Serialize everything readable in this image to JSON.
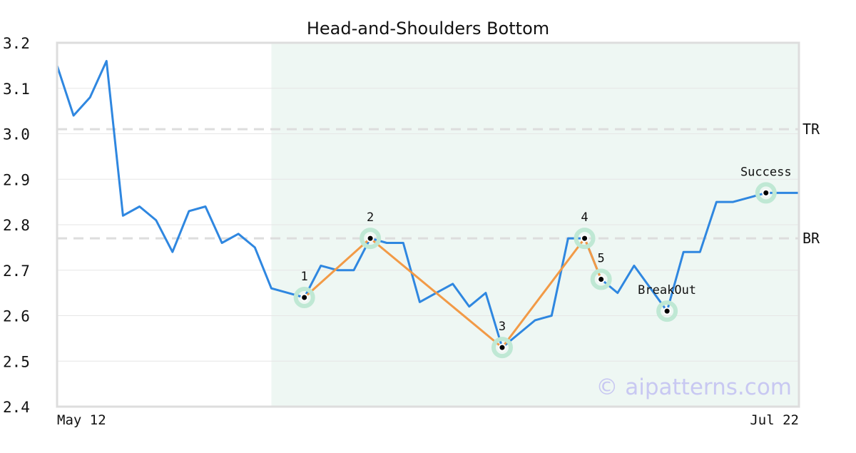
{
  "chart_data": {
    "type": "line",
    "title": "Head-and-Shoulders Bottom",
    "xlabel": "",
    "ylabel": "",
    "ylim": [
      2.4,
      3.2
    ],
    "yticks": [
      "2.4",
      "2.5",
      "2.6",
      "2.7",
      "2.8",
      "2.9",
      "3.0",
      "3.1",
      "3.2"
    ],
    "xtick_labels": [
      "May 12",
      "Jul 22"
    ],
    "grid": true,
    "colors": {
      "price": "#2f87e0",
      "pattern": "#f29a46",
      "highlight": "#bfe8d4",
      "shade": "#eef7f3",
      "refline": "#dddddd",
      "watermark": "#c8c8f2"
    },
    "series": [
      {
        "values": [
          3.15,
          3.04,
          3.08,
          3.16,
          2.82,
          2.84,
          2.81,
          2.74,
          2.83,
          2.84,
          2.76,
          2.78,
          2.75,
          2.66,
          2.65,
          2.64,
          2.71,
          2.7,
          2.7,
          2.77,
          2.76,
          2.76,
          2.63,
          2.65,
          2.67,
          2.62,
          2.65,
          2.53,
          2.56,
          2.59,
          2.6,
          2.77,
          2.77,
          2.68,
          2.65,
          2.71,
          2.66,
          2.61,
          2.74,
          2.74,
          2.85,
          2.85,
          2.86,
          2.87,
          2.87,
          2.87
        ]
      }
    ],
    "shaded_range": {
      "start_index": 13,
      "end_index": 45
    },
    "reference_lines": [
      {
        "label": "TR",
        "value": 3.01
      },
      {
        "label": "BR",
        "value": 2.77
      }
    ],
    "pattern_points": [
      {
        "label": "1",
        "index": 15,
        "value": 2.64
      },
      {
        "label": "2",
        "index": 19,
        "value": 2.77
      },
      {
        "label": "3",
        "index": 27,
        "value": 2.53
      },
      {
        "label": "4",
        "index": 32,
        "value": 2.77
      },
      {
        "label": "5",
        "index": 33,
        "value": 2.68
      }
    ],
    "markers": [
      {
        "label": "BreakOut",
        "index": 37,
        "value": 2.61
      },
      {
        "label": "Success",
        "index": 43,
        "value": 2.87
      }
    ],
    "watermark": "© aipatterns.com"
  }
}
